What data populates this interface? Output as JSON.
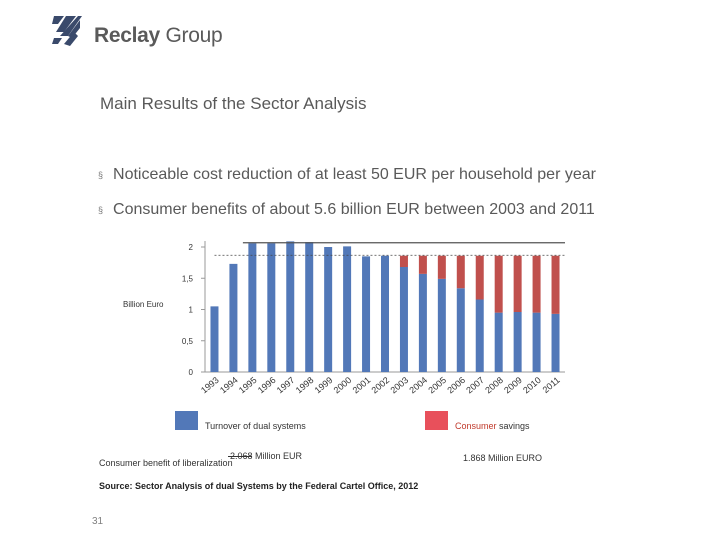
{
  "brand": {
    "name_bold": "Reclay",
    "name_light": "Group"
  },
  "title": "Main Results of the Sector Analysis",
  "bullets": [
    "Noticeable cost reduction of at least 50 EUR per household per year",
    "Consumer benefits of about 5.6 billion EUR between 2003 and 2011"
  ],
  "bullet_marker": "§",
  "colors": {
    "turnover": "#5278b8",
    "savings": "#c0504d",
    "savings_legend": "#e8505b",
    "text": "#595959"
  },
  "chart_data": {
    "type": "bar",
    "ylabel": "Billion Euro",
    "ylim": [
      0,
      2
    ],
    "yticks": [
      "0",
      "0,5",
      "1",
      "1,5",
      "2"
    ],
    "categories": [
      "1993",
      "1994",
      "1995",
      "1996",
      "1997",
      "1998",
      "1999",
      "2000",
      "2001",
      "2002",
      "2003",
      "2004",
      "2005",
      "2006",
      "2007",
      "2008",
      "2009",
      "2010",
      "2011"
    ],
    "series": [
      {
        "name": "Turnover of dual systems",
        "values": [
          1.05,
          1.73,
          2.06,
          2.06,
          2.09,
          2.08,
          2.0,
          2.01,
          1.85,
          1.86,
          1.68,
          1.57,
          1.49,
          1.34,
          1.16,
          0.95,
          0.96,
          0.95,
          0.93
        ]
      },
      {
        "name": "Consumer savings",
        "values": [
          0,
          0,
          0,
          0,
          0,
          0,
          0,
          0,
          0,
          0,
          0.18,
          0.29,
          0.37,
          0.52,
          0.7,
          0.91,
          0.9,
          0.91,
          0.93
        ]
      }
    ],
    "reference_lines": [
      2.068,
      1.868
    ]
  },
  "legend": {
    "turnover": "Turnover of dual systems",
    "savings_highlight": "Consumer",
    "savings_rest": " savings"
  },
  "annotations": {
    "turnover_value": "2.068 Million EUR",
    "savings_value": "1.868 Million EURO",
    "benefit_label": "Consumer benefit of liberalization"
  },
  "source": "Source: Sector Analysis of dual Systems by the Federal Cartel Office, 2012",
  "page_number": "31"
}
